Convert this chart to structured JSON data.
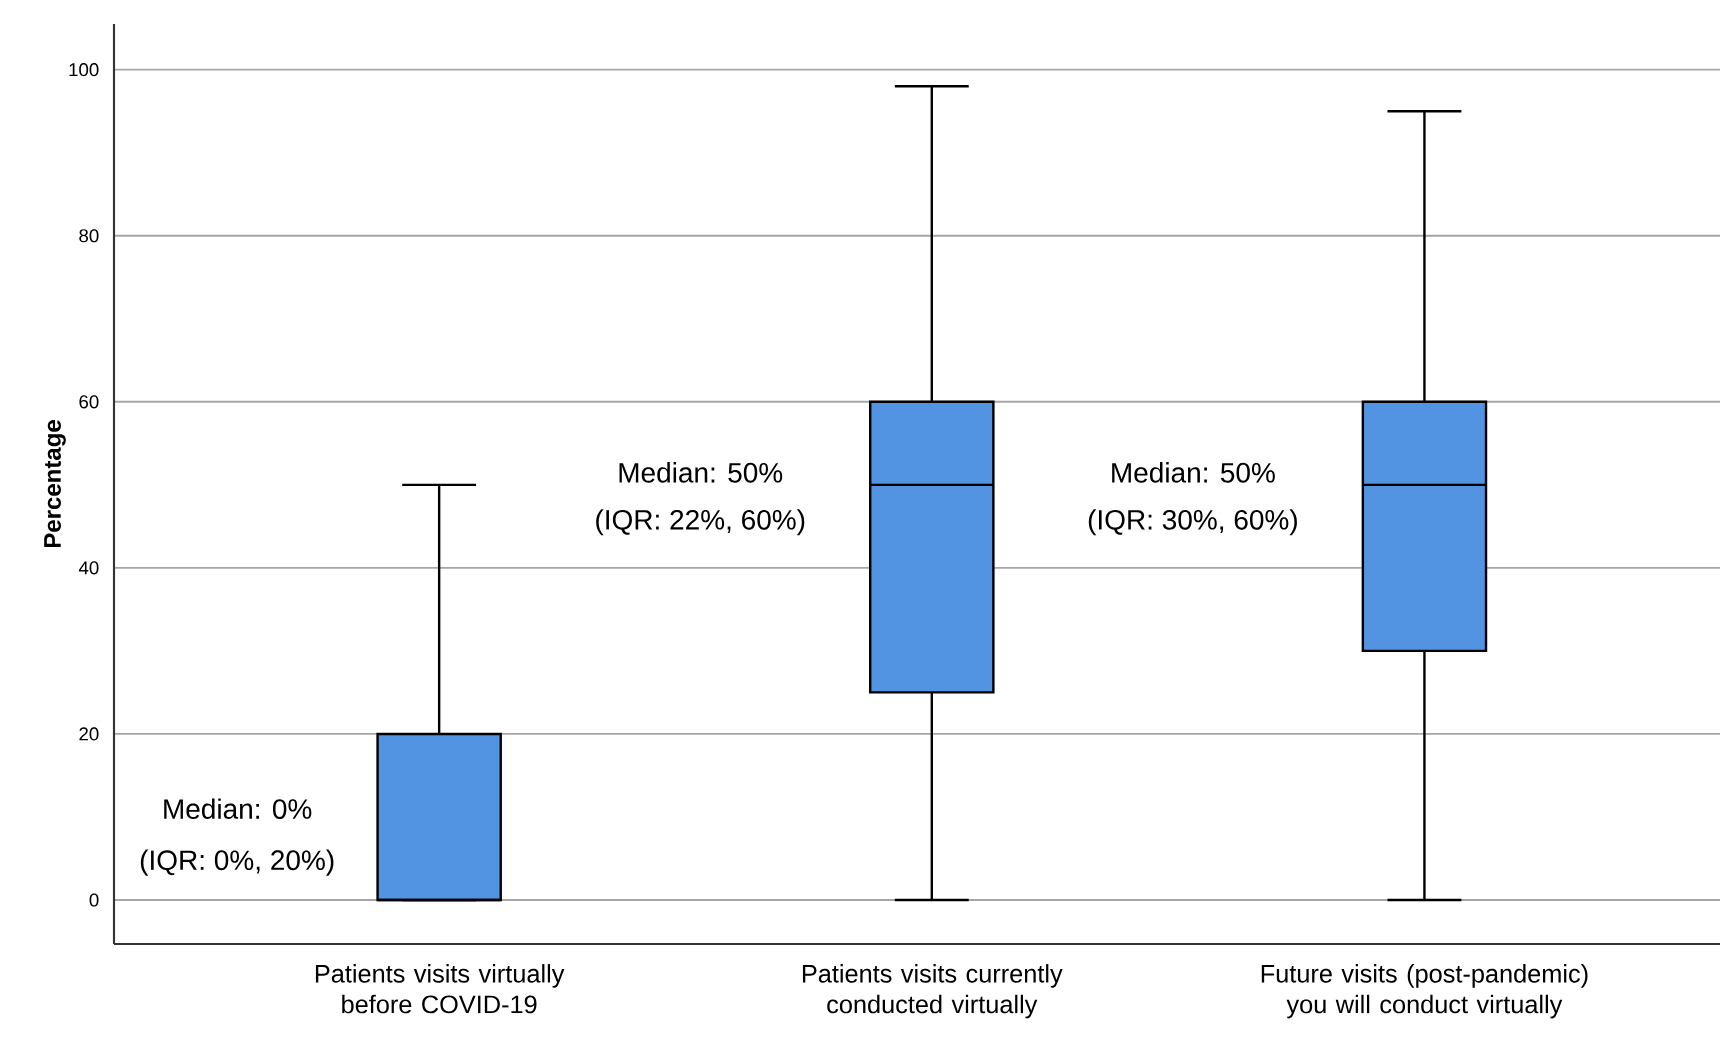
{
  "chart_data": {
    "type": "box",
    "ylabel": "Percentage",
    "categories": [
      "Patients visits virtually before COVID-19",
      "Patients visits currently conducted virtually",
      "Future visits (post-pandemic) you will conduct virtually"
    ],
    "boxes": [
      {
        "low": 0,
        "q1": 0,
        "median": 0,
        "q3": 20,
        "high": 50
      },
      {
        "low": 0,
        "q1": 25,
        "median": 50,
        "q3": 60,
        "high": 98
      },
      {
        "low": 0,
        "q1": 30,
        "median": 50,
        "q3": 60,
        "high": 95
      }
    ],
    "color": "#5294e2",
    "ylim": [
      -5.3,
      105.5
    ],
    "yticks": [
      0,
      20,
      40,
      60,
      80,
      100
    ],
    "grid": "y",
    "annotations": [
      "Median: 0%",
      "(IQR: 0%, 20%)",
      "Median: 50%",
      "(IQR: 22%, 60%)",
      "Median: 50%",
      "(IQR: 30%, 60%)"
    ]
  }
}
